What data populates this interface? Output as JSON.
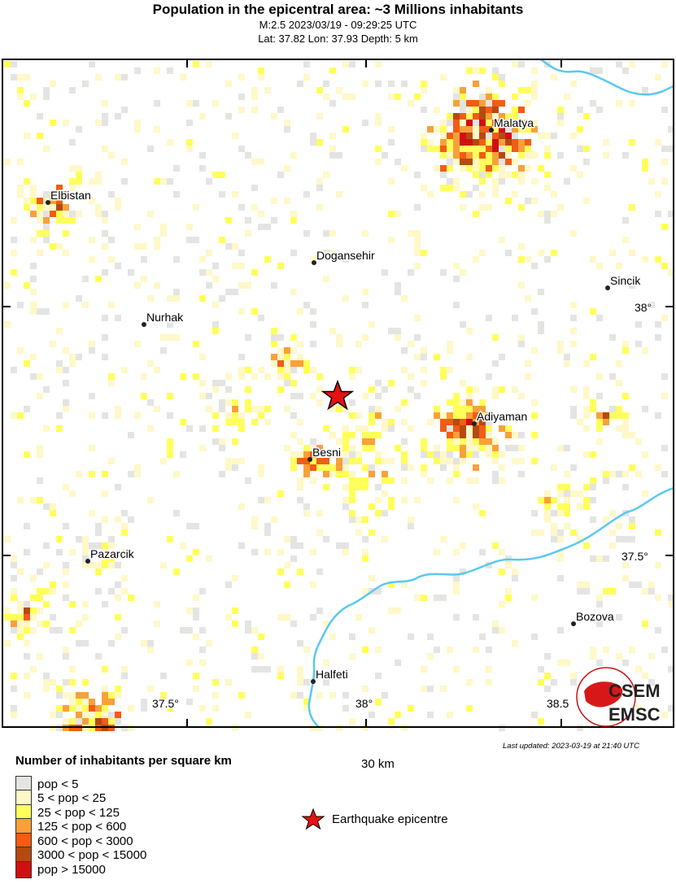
{
  "header": {
    "title": "Population in the epicentral area: ~3 Millions inhabitants",
    "event_line": "M:2.5 2023/03/19 - 09:29:25 UTC",
    "location_line": "Lat: 37.82 Lon: 37.93 Depth: 5 km"
  },
  "map": {
    "cities": [
      {
        "name": "Malatya"
      },
      {
        "name": "Elbistan"
      },
      {
        "name": "Doganşehir",
        "label": "Dogansehir"
      },
      {
        "name": "Sincik"
      },
      {
        "name": "Nurhak"
      },
      {
        "name": "Adiyaman"
      },
      {
        "name": "Besni"
      },
      {
        "name": "Pazarcik"
      },
      {
        "name": "Bozova"
      },
      {
        "name": "Halfeti"
      }
    ],
    "lon_ticks": [
      "37.5°",
      "38°",
      "38.5"
    ],
    "lat_ticks": [
      "38°",
      "37.5°"
    ],
    "epicentre": {
      "lat": 37.82,
      "lon": 37.93
    },
    "river_color": "#5ac8f0",
    "logo_text": [
      "CSEM",
      "EMSC"
    ]
  },
  "scale_bar": {
    "label": "30 km"
  },
  "last_updated": "Last updated: 2023-03-19 at 21:40 UTC",
  "legend": {
    "title": "Number of inhabitants per square km",
    "items": [
      {
        "label": "pop < 5",
        "color": "#e4e4e2"
      },
      {
        "label": "5 < pop < 25",
        "color": "#fff8c8"
      },
      {
        "label": "25 < pop < 125",
        "color": "#ffff5a"
      },
      {
        "label": "125 < pop < 600",
        "color": "#f9a03a"
      },
      {
        "label": "600 < pop < 3000",
        "color": "#f25c14"
      },
      {
        "label": "3000 < pop < 15000",
        "color": "#b44a12"
      },
      {
        "label": "pop > 15000",
        "color": "#d01010"
      }
    ],
    "epicentre_label": "Earthquake epicentre"
  }
}
